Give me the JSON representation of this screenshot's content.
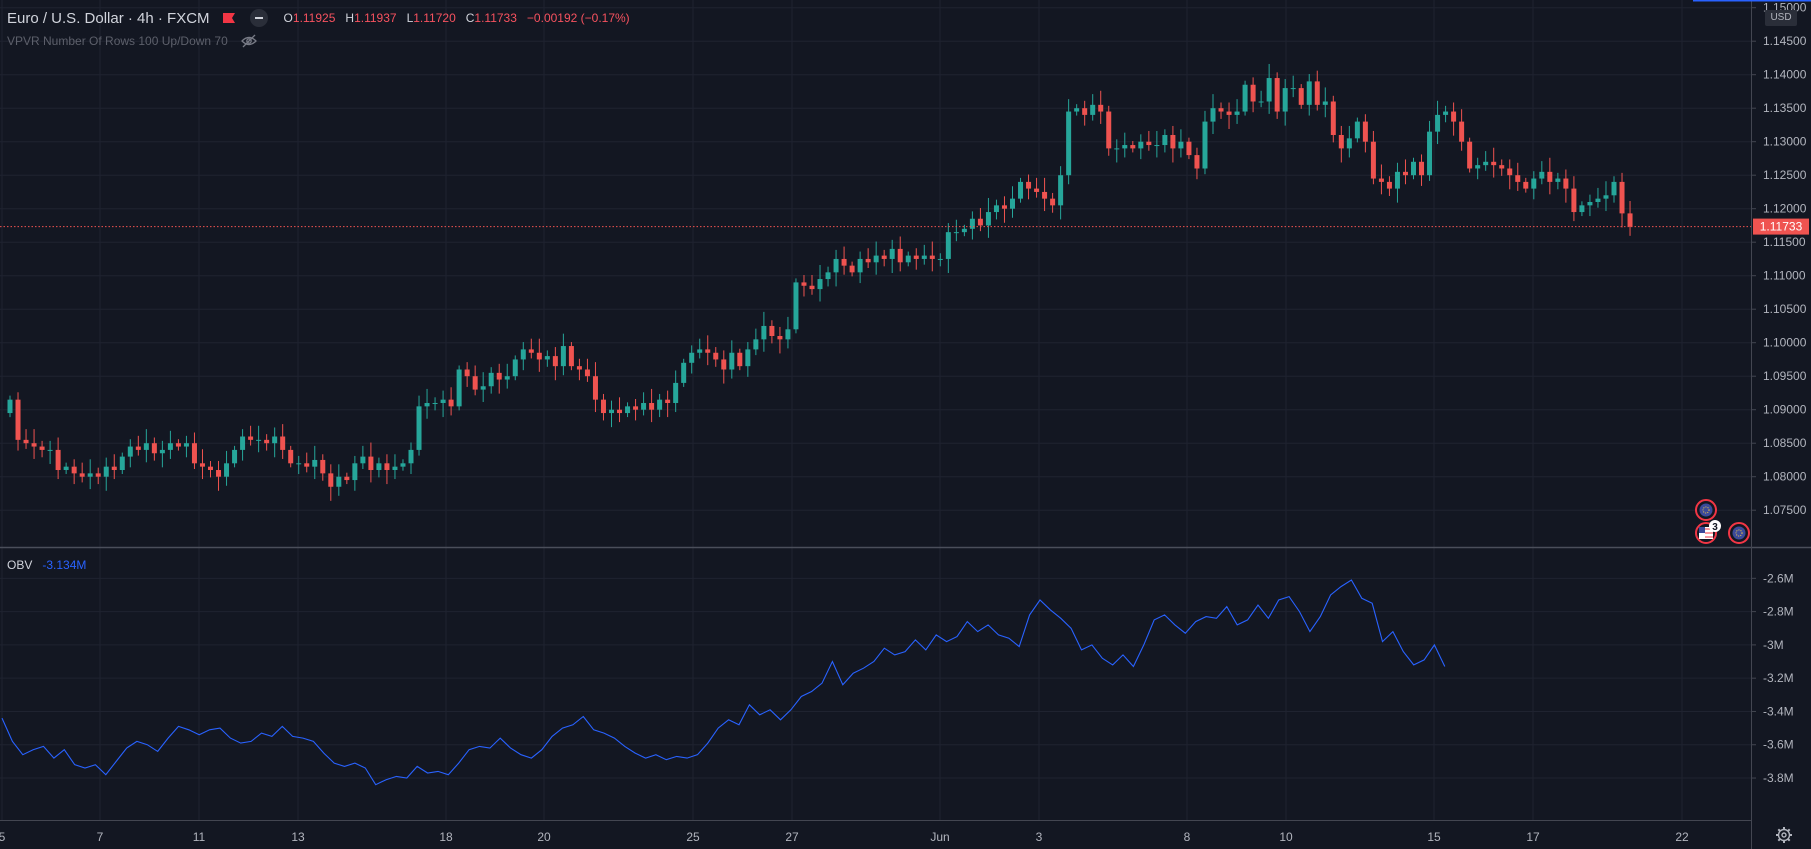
{
  "header": {
    "symbol": "Euro / U.S. Dollar · 4h · FXCM",
    "ohlc": {
      "open_label": "O",
      "open": "1.11925",
      "high_label": "H",
      "high": "1.11937",
      "low_label": "L",
      "low": "1.11720",
      "close_label": "C",
      "close": "1.11733",
      "change": "−0.00192 (−0.17%)"
    }
  },
  "indicators": {
    "vpvr_label": "VPVR Number Of Rows 100 Up/Down 70",
    "obv_name": "OBV",
    "obv_value": "-3.134M"
  },
  "price_axis": {
    "currency": "USD",
    "current_price_label": "1.11733",
    "tick_labels": [
      "1.15000",
      "1.14500",
      "1.14000",
      "1.13500",
      "1.13000",
      "1.12500",
      "1.12000",
      "1.11500",
      "1.11000",
      "1.10500",
      "1.10000",
      "1.09500",
      "1.09000",
      "1.08500",
      "1.08000",
      "1.07500"
    ]
  },
  "obv_axis": {
    "tick_labels": [
      "-2.6M",
      "-2.8M",
      "-3M",
      "-3.2M",
      "-3.4M",
      "-3.6M",
      "-3.8M"
    ]
  },
  "time_axis": {
    "labels": [
      "5",
      "7",
      "11",
      "13",
      "18",
      "20",
      "25",
      "27",
      "Jun",
      "3",
      "8",
      "10",
      "15",
      "17",
      "22"
    ]
  },
  "event_badges": {
    "count": "3"
  },
  "colors": {
    "background": "#131722",
    "up": "#26a69a",
    "down": "#ef5350",
    "obv_line": "#2962ff",
    "text": "#d1d4dc"
  },
  "chart_data": [
    {
      "type": "candlestick",
      "title": "Euro / U.S. Dollar · 4h · FXCM",
      "y_axis_currency": "USD",
      "ylim": [
        1.0713,
        1.1507
      ],
      "current_price": 1.11733,
      "time_labels": [
        "5",
        "7",
        "11",
        "13",
        "18",
        "20",
        "25",
        "27",
        "Jun",
        "3",
        "8",
        "10",
        "15",
        "17",
        "22"
      ],
      "grid": true,
      "x_first_date": "5 May",
      "candles_per_day": 6,
      "close": [
        1.0915,
        1.0855,
        1.085,
        1.0845,
        1.084,
        1.084,
        1.081,
        1.0815,
        1.0805,
        1.08,
        1.0805,
        1.08,
        1.0815,
        1.081,
        1.083,
        1.0845,
        1.084,
        1.085,
        1.0835,
        1.084,
        1.085,
        1.0845,
        1.085,
        1.082,
        1.0815,
        1.081,
        1.08,
        1.082,
        1.084,
        1.086,
        1.0855,
        1.0855,
        1.085,
        1.086,
        1.084,
        1.082,
        1.082,
        1.0815,
        1.0825,
        1.0805,
        1.0785,
        1.08,
        1.0795,
        1.082,
        1.083,
        1.081,
        1.082,
        1.081,
        1.0815,
        1.082,
        1.084,
        1.0905,
        1.091,
        1.091,
        1.0915,
        1.0905,
        1.096,
        1.095,
        1.093,
        1.0935,
        1.0955,
        1.0945,
        1.095,
        1.0975,
        1.099,
        1.0985,
        1.0975,
        1.098,
        1.0965,
        1.0995,
        1.0965,
        1.096,
        1.095,
        1.0915,
        1.0895,
        1.09,
        1.0895,
        1.0905,
        1.09,
        1.091,
        1.09,
        1.0915,
        1.091,
        1.094,
        1.097,
        1.0985,
        1.099,
        1.0985,
        1.0975,
        1.096,
        1.0985,
        1.0965,
        1.099,
        1.1005,
        1.1025,
        1.101,
        1.1005,
        1.102,
        1.109,
        1.1085,
        1.108,
        1.1095,
        1.1105,
        1.1125,
        1.1115,
        1.1105,
        1.1125,
        1.112,
        1.113,
        1.1125,
        1.114,
        1.112,
        1.113,
        1.1125,
        1.113,
        1.1125,
        1.1125,
        1.1165,
        1.1165,
        1.117,
        1.1185,
        1.1175,
        1.1195,
        1.1205,
        1.12,
        1.1215,
        1.124,
        1.123,
        1.1225,
        1.1215,
        1.1205,
        1.125,
        1.1345,
        1.135,
        1.134,
        1.1355,
        1.1345,
        1.129,
        1.129,
        1.1295,
        1.129,
        1.13,
        1.1295,
        1.1295,
        1.131,
        1.129,
        1.13,
        1.128,
        1.126,
        1.133,
        1.135,
        1.1345,
        1.134,
        1.1345,
        1.1385,
        1.136,
        1.136,
        1.1395,
        1.1345,
        1.138,
        1.138,
        1.1355,
        1.139,
        1.1355,
        1.136,
        1.131,
        1.129,
        1.1305,
        1.133,
        1.13,
        1.1245,
        1.124,
        1.123,
        1.1255,
        1.125,
        1.127,
        1.125,
        1.1315,
        1.134,
        1.1345,
        1.133,
        1.13,
        1.126,
        1.1265,
        1.127,
        1.1265,
        1.126,
        1.125,
        1.124,
        1.123,
        1.1245,
        1.1255,
        1.124,
        1.1245,
        1.123,
        1.1195,
        1.1205,
        1.121,
        1.1215,
        1.122,
        1.124,
        1.1193,
        1.1173
      ]
    },
    {
      "type": "line",
      "title": "OBV",
      "current_value_label": "-3.134M",
      "ylim": [
        -3.92,
        -2.58
      ],
      "y_unit": "M",
      "values": [
        -3.44,
        -3.58,
        -3.66,
        -3.63,
        -3.61,
        -3.68,
        -3.63,
        -3.72,
        -3.74,
        -3.72,
        -3.78,
        -3.7,
        -3.62,
        -3.58,
        -3.6,
        -3.64,
        -3.56,
        -3.49,
        -3.51,
        -3.54,
        -3.51,
        -3.5,
        -3.56,
        -3.59,
        -3.58,
        -3.53,
        -3.55,
        -3.49,
        -3.55,
        -3.56,
        -3.58,
        -3.65,
        -3.71,
        -3.73,
        -3.71,
        -3.74,
        -3.84,
        -3.81,
        -3.79,
        -3.8,
        -3.73,
        -3.77,
        -3.76,
        -3.78,
        -3.71,
        -3.63,
        -3.61,
        -3.62,
        -3.56,
        -3.62,
        -3.66,
        -3.68,
        -3.63,
        -3.55,
        -3.5,
        -3.48,
        -3.43,
        -3.51,
        -3.53,
        -3.56,
        -3.61,
        -3.65,
        -3.68,
        -3.66,
        -3.69,
        -3.67,
        -3.68,
        -3.66,
        -3.59,
        -3.5,
        -3.45,
        -3.48,
        -3.36,
        -3.42,
        -3.39,
        -3.45,
        -3.39,
        -3.31,
        -3.28,
        -3.23,
        -3.1,
        -3.24,
        -3.17,
        -3.14,
        -3.1,
        -3.02,
        -3.06,
        -3.04,
        -2.97,
        -3.03,
        -2.94,
        -2.98,
        -2.95,
        -2.86,
        -2.92,
        -2.88,
        -2.94,
        -2.96,
        -3.01,
        -2.82,
        -2.73,
        -2.79,
        -2.84,
        -2.9,
        -3.03,
        -3.0,
        -3.08,
        -3.12,
        -3.06,
        -3.13,
        -3.0,
        -2.85,
        -2.82,
        -2.88,
        -2.93,
        -2.86,
        -2.83,
        -2.84,
        -2.77,
        -2.88,
        -2.85,
        -2.76,
        -2.84,
        -2.73,
        -2.71,
        -2.8,
        -2.92,
        -2.83,
        -2.7,
        -2.65,
        -2.61,
        -2.72,
        -2.75,
        -2.98,
        -2.92,
        -3.04,
        -3.12,
        -3.09,
        -3.0,
        -3.13
      ]
    }
  ]
}
